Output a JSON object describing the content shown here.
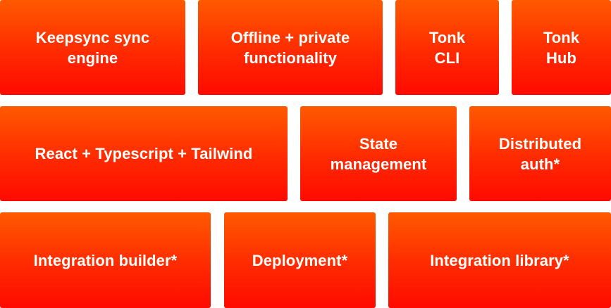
{
  "bricks": {
    "keepsync": {
      "label": "Keepsync sync\nengine"
    },
    "offline": {
      "label": "Offline + private\nfunctionality"
    },
    "tonk_cli": {
      "label": "Tonk\nCLI"
    },
    "tonk_hub": {
      "label": "Tonk\nHub"
    },
    "stack": {
      "label": "React + Typescript + Tailwind"
    },
    "state": {
      "label": "State\nmanagement"
    },
    "auth": {
      "label": "Distributed\nauth*"
    },
    "integration_builder": {
      "label": "Integration builder*"
    },
    "deployment": {
      "label": "Deployment*"
    },
    "integration_library": {
      "label": "Integration library*"
    }
  },
  "colors": {
    "brick_top": "#ff5a00",
    "brick_bottom": "#ff0a00",
    "text": "#ffffff",
    "background": "#ffffff"
  }
}
